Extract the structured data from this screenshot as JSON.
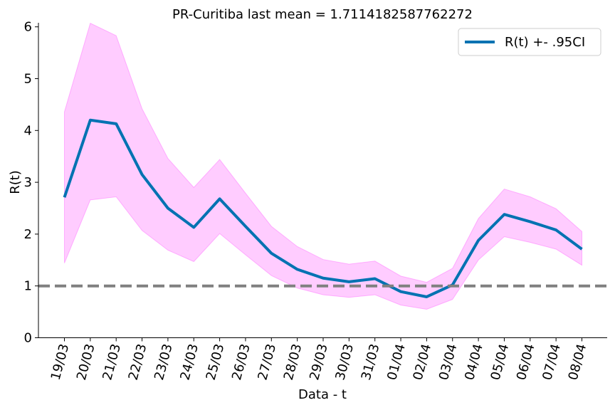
{
  "chart_data": {
    "type": "line",
    "title": "PR-Curitiba last mean = 1.7114182587762272",
    "xlabel": "Data - t",
    "ylabel": "R(t)",
    "categories": [
      "19/03",
      "20/03",
      "21/03",
      "22/03",
      "23/03",
      "24/03",
      "25/03",
      "26/03",
      "27/03",
      "28/03",
      "29/03",
      "30/03",
      "31/03",
      "01/04",
      "02/04",
      "03/04",
      "04/04",
      "05/04",
      "06/04",
      "07/04",
      "08/04"
    ],
    "ylim": [
      0,
      6.07
    ],
    "yticks": [
      "0",
      "1",
      "2",
      "3",
      "4",
      "5",
      "6"
    ],
    "reference_line": {
      "y": 1,
      "style": "dashed",
      "color": "#808080"
    },
    "series": [
      {
        "name": "R(t) +- .95CI",
        "color": "#0072b2",
        "values": [
          2.71,
          4.2,
          4.13,
          3.15,
          2.5,
          2.13,
          2.68,
          2.15,
          1.63,
          1.32,
          1.15,
          1.08,
          1.14,
          0.89,
          0.79,
          1.02,
          1.88,
          2.38,
          2.24,
          2.08,
          1.71
        ],
        "ci_lower": [
          1.44,
          2.66,
          2.72,
          2.07,
          1.69,
          1.47,
          2.01,
          1.6,
          1.2,
          0.96,
          0.83,
          0.78,
          0.83,
          0.63,
          0.55,
          0.74,
          1.5,
          1.95,
          1.84,
          1.71,
          1.4
        ],
        "ci_upper": [
          4.36,
          6.07,
          5.83,
          4.42,
          3.46,
          2.9,
          3.44,
          2.79,
          2.15,
          1.76,
          1.51,
          1.42,
          1.48,
          1.19,
          1.07,
          1.34,
          2.3,
          2.87,
          2.72,
          2.49,
          2.05
        ],
        "ci_color": "#ff00ff"
      }
    ],
    "legend": {
      "position": "top-right"
    }
  }
}
